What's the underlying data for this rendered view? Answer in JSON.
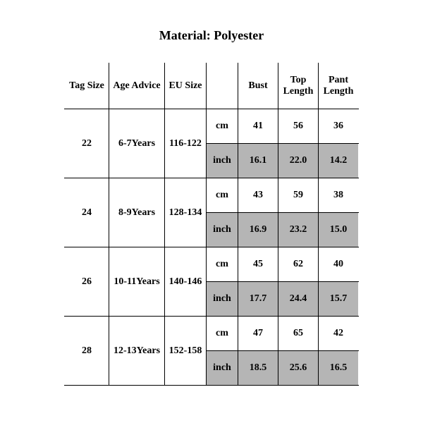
{
  "title": "Material: Polyester",
  "table": {
    "columns": [
      "Tag Size",
      "Age Advice",
      "EU Size",
      "",
      "Bust",
      "Top Length",
      "Pant Length"
    ],
    "unitLabels": {
      "cm": "cm",
      "inch": "inch"
    },
    "colors": {
      "shade": "#b5b5b5",
      "border": "#000000",
      "bg": "#ffffff",
      "text": "#000000"
    },
    "fontSizes": {
      "title": 18,
      "body": 14
    },
    "rows": [
      {
        "tag": "22",
        "age": "6-7Years",
        "eu": "116-122",
        "cm": {
          "bust": "41",
          "top": "56",
          "pant": "36"
        },
        "inch": {
          "bust": "16.1",
          "top": "22.0",
          "pant": "14.2"
        }
      },
      {
        "tag": "24",
        "age": "8-9Years",
        "eu": "128-134",
        "cm": {
          "bust": "43",
          "top": "59",
          "pant": "38"
        },
        "inch": {
          "bust": "16.9",
          "top": "23.2",
          "pant": "15.0"
        }
      },
      {
        "tag": "26",
        "age": "10-11Years",
        "eu": "140-146",
        "cm": {
          "bust": "45",
          "top": "62",
          "pant": "40"
        },
        "inch": {
          "bust": "17.7",
          "top": "24.4",
          "pant": "15.7"
        }
      },
      {
        "tag": "28",
        "age": "12-13Years",
        "eu": "152-158",
        "cm": {
          "bust": "47",
          "top": "65",
          "pant": "42"
        },
        "inch": {
          "bust": "18.5",
          "top": "25.6",
          "pant": "16.5"
        }
      }
    ]
  }
}
